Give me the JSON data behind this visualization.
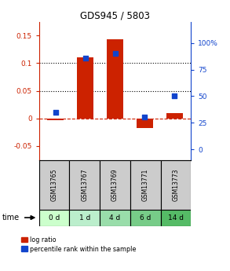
{
  "title": "GDS945 / 5803",
  "samples": [
    "GSM13765",
    "GSM13767",
    "GSM13769",
    "GSM13771",
    "GSM13773"
  ],
  "time_labels": [
    "0 d",
    "1 d",
    "4 d",
    "6 d",
    "14 d"
  ],
  "log_ratios": [
    -0.003,
    0.111,
    0.143,
    -0.018,
    0.009
  ],
  "percentile_ranks": [
    35,
    86,
    90,
    30,
    50
  ],
  "ylim_left": [
    -0.075,
    0.175
  ],
  "ylim_right": [
    -10,
    120
  ],
  "yticks_left": [
    -0.05,
    0.0,
    0.05,
    0.1,
    0.15
  ],
  "yticks_right": [
    0,
    25,
    50,
    75,
    100
  ],
  "ytick_labels_left": [
    "-0.05",
    "0",
    "0.05",
    "0.1",
    "0.15"
  ],
  "ytick_labels_right": [
    "0",
    "25",
    "50",
    "75",
    "100%"
  ],
  "bar_color": "#cc2200",
  "scatter_color": "#1144cc",
  "time_colors": [
    "#ccffcc",
    "#bbeecc",
    "#99ddaa",
    "#77cc88",
    "#55bb66"
  ],
  "sample_bg_color": "#cccccc",
  "bar_width": 0.55
}
